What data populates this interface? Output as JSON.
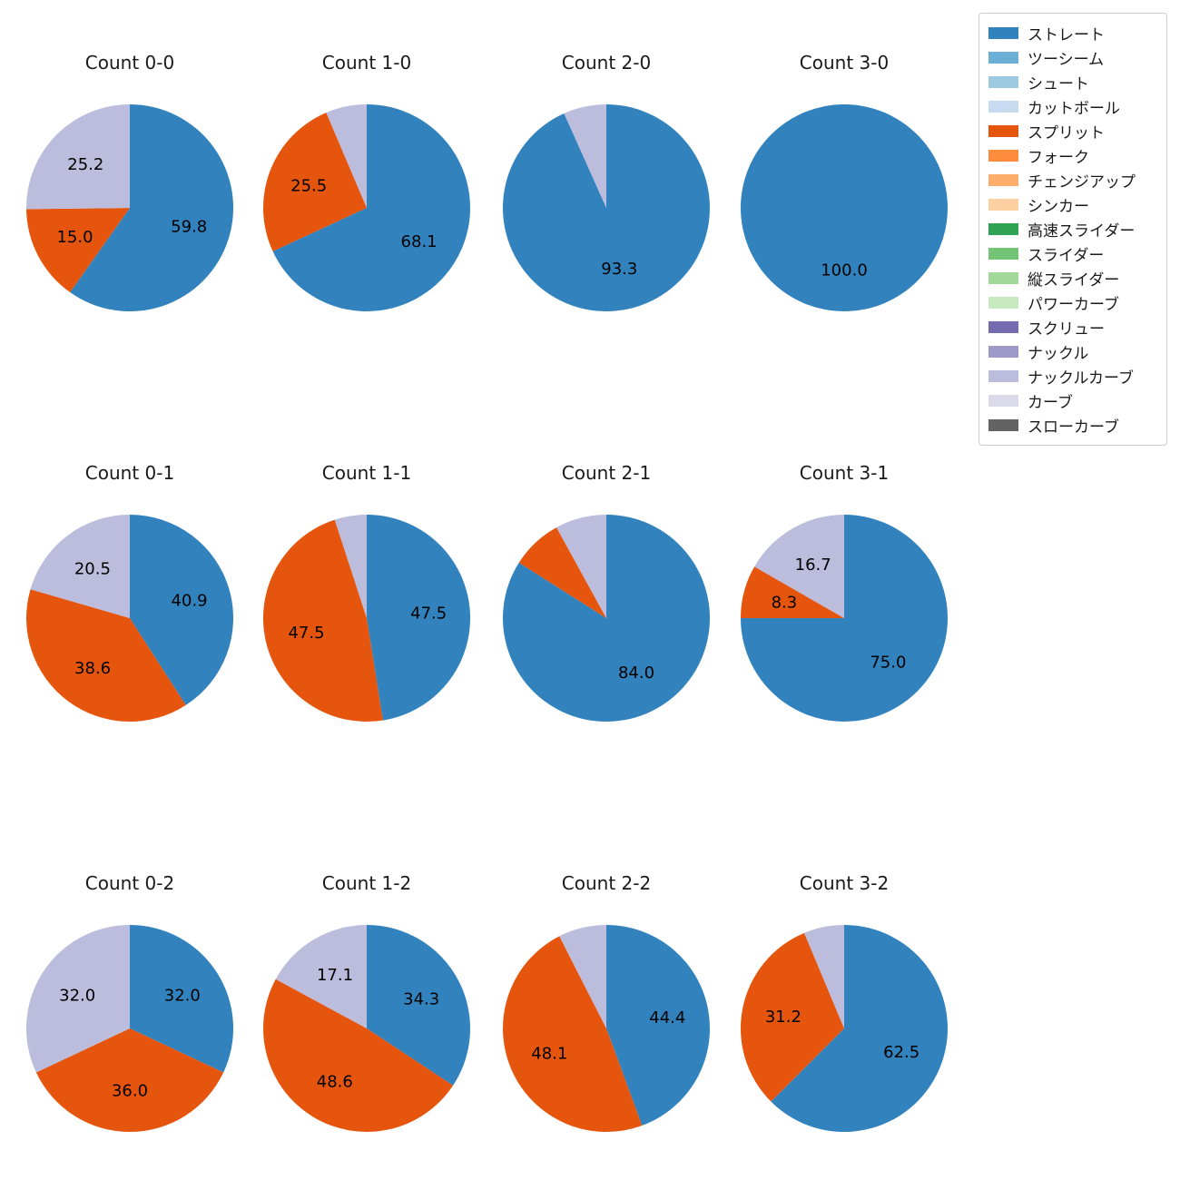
{
  "figure": {
    "background": "#ffffff",
    "text_color": "#1a1a1a"
  },
  "legend": {
    "border_color": "#cccccc",
    "items": [
      {
        "label": "ストレート",
        "color": "#3182bd"
      },
      {
        "label": "ツーシーム",
        "color": "#6baed6"
      },
      {
        "label": "シュート",
        "color": "#9ecae1"
      },
      {
        "label": "カットボール",
        "color": "#c6dbef"
      },
      {
        "label": "スプリット",
        "color": "#e6550d"
      },
      {
        "label": "フォーク",
        "color": "#fd8d3c"
      },
      {
        "label": "チェンジアップ",
        "color": "#fdae6b"
      },
      {
        "label": "シンカー",
        "color": "#fdd0a2"
      },
      {
        "label": "高速スライダー",
        "color": "#31a354"
      },
      {
        "label": "スライダー",
        "color": "#74c476"
      },
      {
        "label": "縦スライダー",
        "color": "#a1d99b"
      },
      {
        "label": "パワーカーブ",
        "color": "#c7e9c0"
      },
      {
        "label": "スクリュー",
        "color": "#756bb1"
      },
      {
        "label": "ナックル",
        "color": "#9e9ac8"
      },
      {
        "label": "ナックルカーブ",
        "color": "#bcbddc"
      },
      {
        "label": "カーブ",
        "color": "#dadaeb"
      },
      {
        "label": "スローカーブ",
        "color": "#636363"
      }
    ]
  },
  "chart_data": [
    {
      "type": "pie",
      "title": "Count 0-0",
      "start_angle": "top",
      "direction": "clockwise",
      "slices": [
        {
          "name": "ストレート",
          "value": 59.8,
          "label": "59.8",
          "color": "#3182bd"
        },
        {
          "name": "スプリット",
          "value": 15.0,
          "label": "15.0",
          "color": "#e6550d"
        },
        {
          "name": "ナックルカーブ",
          "value": 25.2,
          "label": "25.2",
          "color": "#bcbddc"
        }
      ]
    },
    {
      "type": "pie",
      "title": "Count 1-0",
      "start_angle": "top",
      "direction": "clockwise",
      "slices": [
        {
          "name": "ストレート",
          "value": 68.1,
          "label": "68.1",
          "color": "#3182bd"
        },
        {
          "name": "スプリット",
          "value": 25.5,
          "label": "25.5",
          "color": "#e6550d"
        },
        {
          "name": "ナックルカーブ",
          "value": 6.4,
          "label": "",
          "color": "#bcbddc"
        }
      ]
    },
    {
      "type": "pie",
      "title": "Count 2-0",
      "start_angle": "top",
      "direction": "clockwise",
      "slices": [
        {
          "name": "ストレート",
          "value": 93.3,
          "label": "93.3",
          "color": "#3182bd"
        },
        {
          "name": "ナックルカーブ",
          "value": 6.7,
          "label": "",
          "color": "#bcbddc"
        }
      ]
    },
    {
      "type": "pie",
      "title": "Count 3-0",
      "start_angle": "top",
      "direction": "clockwise",
      "slices": [
        {
          "name": "ストレート",
          "value": 100.0,
          "label": "100.0",
          "color": "#3182bd"
        }
      ]
    },
    {
      "type": "pie",
      "title": "Count 0-1",
      "start_angle": "top",
      "direction": "clockwise",
      "slices": [
        {
          "name": "ストレート",
          "value": 40.9,
          "label": "40.9",
          "color": "#3182bd"
        },
        {
          "name": "スプリット",
          "value": 38.6,
          "label": "38.6",
          "color": "#e6550d"
        },
        {
          "name": "ナックルカーブ",
          "value": 20.5,
          "label": "20.5",
          "color": "#bcbddc"
        }
      ]
    },
    {
      "type": "pie",
      "title": "Count 1-1",
      "start_angle": "top",
      "direction": "clockwise",
      "slices": [
        {
          "name": "ストレート",
          "value": 47.5,
          "label": "47.5",
          "color": "#3182bd"
        },
        {
          "name": "スプリット",
          "value": 47.5,
          "label": "47.5",
          "color": "#e6550d"
        },
        {
          "name": "ナックルカーブ",
          "value": 5.0,
          "label": "",
          "color": "#bcbddc"
        }
      ]
    },
    {
      "type": "pie",
      "title": "Count 2-1",
      "start_angle": "top",
      "direction": "clockwise",
      "slices": [
        {
          "name": "ストレート",
          "value": 84.0,
          "label": "84.0",
          "color": "#3182bd"
        },
        {
          "name": "スプリット",
          "value": 8.0,
          "label": "",
          "color": "#e6550d"
        },
        {
          "name": "ナックルカーブ",
          "value": 8.0,
          "label": "",
          "color": "#bcbddc"
        }
      ]
    },
    {
      "type": "pie",
      "title": "Count 3-1",
      "start_angle": "top",
      "direction": "clockwise",
      "slices": [
        {
          "name": "ストレート",
          "value": 75.0,
          "label": "75.0",
          "color": "#3182bd"
        },
        {
          "name": "スプリット",
          "value": 8.3,
          "label": "8.3",
          "color": "#e6550d"
        },
        {
          "name": "ナックルカーブ",
          "value": 16.7,
          "label": "16.7",
          "color": "#bcbddc"
        }
      ]
    },
    {
      "type": "pie",
      "title": "Count 0-2",
      "start_angle": "top",
      "direction": "clockwise",
      "slices": [
        {
          "name": "ストレート",
          "value": 32.0,
          "label": "32.0",
          "color": "#3182bd"
        },
        {
          "name": "スプリット",
          "value": 36.0,
          "label": "36.0",
          "color": "#e6550d"
        },
        {
          "name": "ナックルカーブ",
          "value": 32.0,
          "label": "32.0",
          "color": "#bcbddc"
        }
      ]
    },
    {
      "type": "pie",
      "title": "Count 1-2",
      "start_angle": "top",
      "direction": "clockwise",
      "slices": [
        {
          "name": "ストレート",
          "value": 34.3,
          "label": "34.3",
          "color": "#3182bd"
        },
        {
          "name": "スプリット",
          "value": 48.6,
          "label": "48.6",
          "color": "#e6550d"
        },
        {
          "name": "ナックルカーブ",
          "value": 17.1,
          "label": "17.1",
          "color": "#bcbddc"
        }
      ]
    },
    {
      "type": "pie",
      "title": "Count 2-2",
      "start_angle": "top",
      "direction": "clockwise",
      "slices": [
        {
          "name": "ストレート",
          "value": 44.4,
          "label": "44.4",
          "color": "#3182bd"
        },
        {
          "name": "スプリット",
          "value": 48.1,
          "label": "48.1",
          "color": "#e6550d"
        },
        {
          "name": "ナックルカーブ",
          "value": 7.5,
          "label": "",
          "color": "#bcbddc"
        }
      ]
    },
    {
      "type": "pie",
      "title": "Count 3-2",
      "start_angle": "top",
      "direction": "clockwise",
      "slices": [
        {
          "name": "ストレート",
          "value": 62.5,
          "label": "62.5",
          "color": "#3182bd"
        },
        {
          "name": "スプリット",
          "value": 31.2,
          "label": "31.2",
          "color": "#e6550d"
        },
        {
          "name": "ナックルカーブ",
          "value": 6.3,
          "label": "",
          "color": "#bcbddc"
        }
      ]
    }
  ]
}
